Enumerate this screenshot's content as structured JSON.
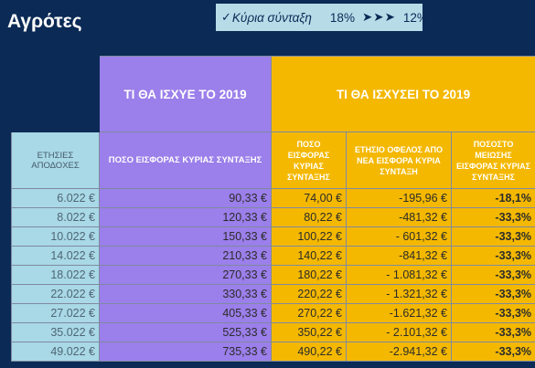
{
  "title": "Αγρότες",
  "note": {
    "check": "✓",
    "label": "Κύρια σύνταξη",
    "rate_from": "18%",
    "arrows": "➤➤➤",
    "rate_to": "12%"
  },
  "table": {
    "header_2019_old": "ΤΙ ΘΑ ΙΣΧΥΕ ΤΟ 2019",
    "header_2019_new": "ΤΙ ΘΑ ΙΣΧΥΣΕΙ ΤΟ 2019",
    "columns": [
      "ΕΤΗΣΙΕΣ ΑΠΟΔΟΧΕΣ",
      "ΠΟΣΟ ΕΙΣΦΟΡΑΣ ΚΥΡΙΑΣ ΣΥΝΤΑΞΗΣ",
      "ΠΟΣΟ ΕΙΣΦΟΡΑΣ ΚΥΡΙΑΣ ΣΥΝΤΑΞΗΣ",
      "ΕΤΗΣΙΟ ΟΦΕΛΟΣ ΑΠΟ ΝΕΑ ΕΙΣΦΟΡΑ ΚΥΡΙΑ ΣΥΝΤΑΞΗ",
      "ΠΟΣΟΣΤΟ ΜΕΙΩΣΗΣ ΕΙΣΦΟΡΑΣ ΚΥΡΙΑΣ ΣΥΝΤΑΞΗΣ"
    ],
    "rows": [
      [
        "6.022 €",
        "90,33 €",
        "74,00 €",
        "-195,96 €",
        "-18,1%"
      ],
      [
        "8.022 €",
        "120,33 €",
        "80,22 €",
        "-481,32 €",
        "-33,3%"
      ],
      [
        "10.022 €",
        "150,33 €",
        "100,22 €",
        "- 601,32 €",
        "-33,3%"
      ],
      [
        "14.022 €",
        "210,33 €",
        "140,22 €",
        "-841,32 €",
        "-33,3%"
      ],
      [
        "18.022 €",
        "270,33 €",
        "180,22 €",
        "- 1.081,32 €",
        "-33,3%"
      ],
      [
        "22.022 €",
        "330,33 €",
        "220,22 €",
        "- 1.321,32 €",
        "-33,3%"
      ],
      [
        "27.022 €",
        "405,33 €",
        "270,22 €",
        "-1.621,32 €",
        "-33,3%"
      ],
      [
        "35.022 €",
        "525,33 €",
        "350,22 €",
        "- 2.101,32 €",
        "-33,3%"
      ],
      [
        "49.022 €",
        "735,33 €",
        "490,22 €",
        "-2.941,32 €",
        "-33,3%"
      ]
    ]
  },
  "colors": {
    "background": "#0b2a55",
    "purple": "#9b7fea",
    "yellow": "#f4b800",
    "cyan": "#a9d8e6"
  }
}
